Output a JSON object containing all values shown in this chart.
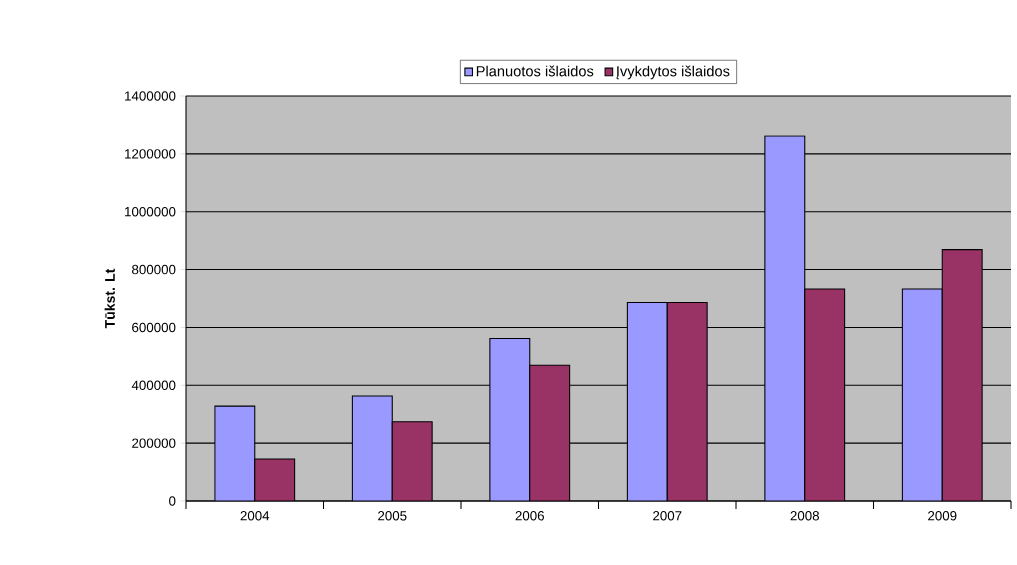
{
  "chart_data": {
    "type": "bar",
    "ylabel": "Tūkst. Lt",
    "categories": [
      "2004",
      "2005",
      "2006",
      "2007",
      "2008",
      "2009"
    ],
    "series": [
      {
        "name": "Planuotos išlaidos",
        "color": "#9999ff",
        "values": [
          328000,
          363000,
          562000,
          686000,
          1262000,
          733000
        ]
      },
      {
        "name": "Įvykdytos išlaidos",
        "color": "#993366",
        "values": [
          145000,
          274000,
          469000,
          686000,
          733000,
          869000
        ]
      }
    ],
    "ylim": [
      0,
      1400000
    ],
    "yticks": [
      0,
      200000,
      400000,
      600000,
      800000,
      1000000,
      1200000,
      1400000
    ],
    "grid": "y",
    "legend": "top"
  }
}
